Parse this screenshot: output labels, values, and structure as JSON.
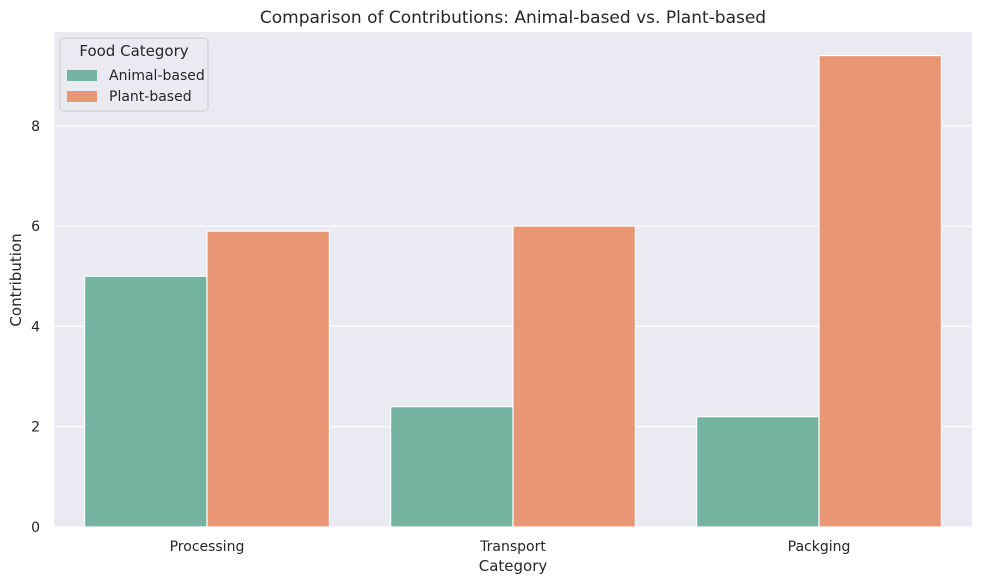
{
  "chart_data": {
    "type": "bar",
    "title": "Comparison of Contributions: Animal-based vs. Plant-based",
    "xlabel": "Category",
    "ylabel": "Contribution",
    "categories": [
      "Processing",
      "Transport",
      "Packging"
    ],
    "series": [
      {
        "name": "Animal-based",
        "color": "#73b3a0",
        "values": [
          5.0,
          2.4,
          2.2
        ]
      },
      {
        "name": "Plant-based",
        "color": "#e89673",
        "values": [
          5.9,
          6.0,
          9.4
        ]
      }
    ],
    "ylim": [
      0,
      9.87
    ],
    "yticks": [
      0,
      2,
      4,
      6,
      8
    ],
    "grid": true,
    "background": "#eaeaf2",
    "legend": {
      "title": "Food Category",
      "placement": "top-left"
    }
  }
}
